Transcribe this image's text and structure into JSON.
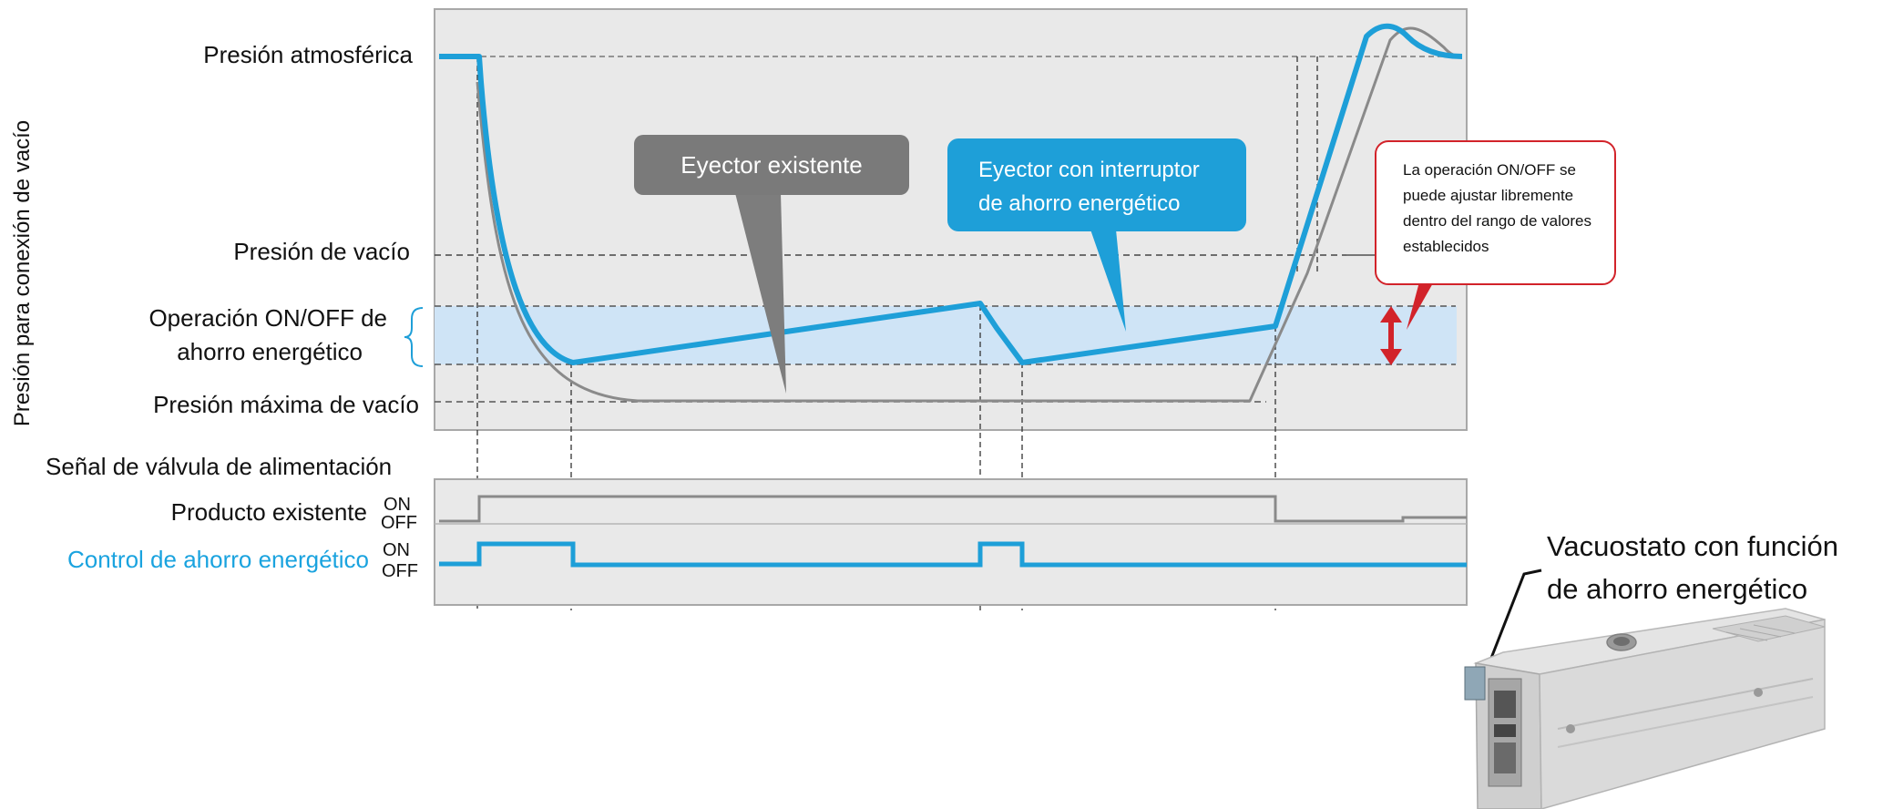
{
  "y_axis_title": "Presión para conexión de vacío",
  "pressure_levels": {
    "atmospheric": "Presión atmosférica",
    "vacuum": "Presión de vacío",
    "on_off_line1": "Operación ON/OFF de",
    "on_off_line2": "ahorro energético",
    "max_vacuum": "Presión máxima de vacío"
  },
  "callouts": {
    "existing": "Eyector existente",
    "switch_line1": "Eyector con interruptor",
    "switch_line2": "de ahorro energético",
    "note_lines": [
      "La operación ON/OFF se",
      "puede ajustar libremente",
      "dentro del rango de valores",
      "establecidos"
    ]
  },
  "signals": {
    "title": "Señal de válvula de alimentación",
    "existing_label": "Producto existente",
    "control_label": "Control de ahorro energético",
    "on": "ON",
    "off": "OFF"
  },
  "product": {
    "line1": "Vacuostato con función",
    "line2": "de ahorro energético"
  },
  "colors": {
    "blue": "#1e9fd8",
    "grey_curve": "#8a8a8a",
    "band": "#cde4f5",
    "panel": "#eaeaea",
    "red": "#d2232a",
    "callout_grey": "#7a7a7a",
    "label_blue": "#00a0e0"
  }
}
